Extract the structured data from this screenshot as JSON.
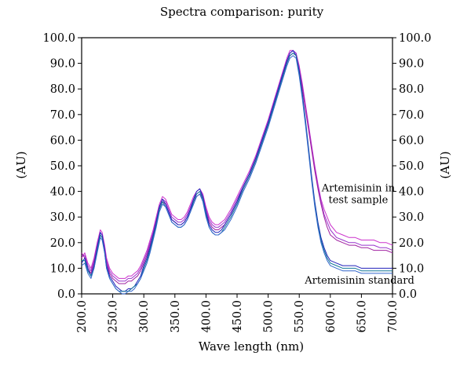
{
  "chart_data": {
    "type": "line",
    "title": "Spectra comparison: purity",
    "xlabel": "Wave length (nm)",
    "ylabel_left": "(AU)",
    "ylabel_right": "(AU)",
    "xlim": [
      200,
      700
    ],
    "ylim": [
      0,
      100
    ],
    "x_ticks": [
      "200.0",
      "250.0",
      "300.0",
      "350.0",
      "400.0",
      "450.0",
      "500.0",
      "550.0",
      "600.0",
      "650.0",
      "700.0"
    ],
    "y_ticks": [
      "0.0",
      "10.0",
      "20.0",
      "30.0",
      "40.0",
      "50.0",
      "60.0",
      "70.0",
      "80.0",
      "90.0",
      "100.0"
    ],
    "grid": false,
    "annotations": [
      {
        "lines": [
          "Artemisinin in",
          "test sample"
        ],
        "x": 645,
        "y": 40
      },
      {
        "lines": [
          "Artemisinin standard"
        ],
        "x": 647,
        "y": 4
      }
    ],
    "colors": {
      "test_sample": [
        "#cc33cc",
        "#9933cc",
        "#a020a0"
      ],
      "standard": [
        "#2222bb",
        "#117799",
        "#3366cc"
      ]
    },
    "series": [
      {
        "group": "test_sample",
        "x": [
          200,
          205,
          210,
          215,
          220,
          225,
          230,
          233,
          237,
          240,
          245,
          250,
          255,
          260,
          265,
          270,
          275,
          280,
          285,
          290,
          295,
          300,
          305,
          310,
          315,
          320,
          325,
          330,
          335,
          340,
          345,
          350,
          355,
          360,
          365,
          370,
          375,
          380,
          385,
          390,
          395,
          400,
          405,
          410,
          415,
          420,
          425,
          430,
          440,
          450,
          460,
          470,
          480,
          490,
          500,
          510,
          520,
          530,
          535,
          540,
          545,
          550,
          555,
          560,
          565,
          570,
          575,
          580,
          585,
          590,
          595,
          600,
          610,
          620,
          630,
          640,
          650,
          660,
          670,
          680,
          690,
          700
        ],
        "y": [
          14,
          16,
          12,
          10,
          14,
          20,
          25,
          24,
          19,
          14,
          10,
          8,
          7,
          6,
          6,
          6,
          7,
          7,
          8,
          9,
          11,
          14,
          17,
          21,
          25,
          30,
          35,
          38,
          37,
          34,
          31,
          30,
          29,
          29,
          30,
          32,
          35,
          38,
          40,
          41,
          39,
          34,
          30,
          28,
          27,
          27,
          28,
          29,
          33,
          38,
          43,
          48,
          54,
          61,
          68,
          76,
          84,
          92,
          95,
          95,
          94,
          89,
          82,
          74,
          66,
          58,
          50,
          43,
          37,
          33,
          30,
          27,
          24,
          23,
          22,
          22,
          21,
          21,
          21,
          20,
          20,
          19
        ]
      },
      {
        "group": "test_sample",
        "x": [
          200,
          205,
          210,
          215,
          220,
          225,
          230,
          233,
          237,
          240,
          245,
          250,
          255,
          260,
          265,
          270,
          275,
          280,
          285,
          290,
          295,
          300,
          305,
          310,
          315,
          320,
          325,
          330,
          335,
          340,
          345,
          350,
          355,
          360,
          365,
          370,
          375,
          380,
          385,
          390,
          395,
          400,
          405,
          410,
          415,
          420,
          425,
          430,
          440,
          450,
          460,
          470,
          480,
          490,
          500,
          510,
          520,
          530,
          535,
          540,
          545,
          550,
          555,
          560,
          565,
          570,
          575,
          580,
          585,
          590,
          595,
          600,
          610,
          620,
          630,
          640,
          650,
          660,
          670,
          680,
          690,
          700
        ],
        "y": [
          15,
          15,
          11,
          9,
          13,
          19,
          24,
          23,
          18,
          13,
          9,
          7,
          6,
          5,
          5,
          5,
          6,
          6,
          7,
          8,
          10,
          13,
          16,
          20,
          24,
          29,
          34,
          37,
          36,
          33,
          30,
          29,
          28,
          28,
          29,
          31,
          34,
          37,
          39,
          40,
          38,
          33,
          29,
          27,
          26,
          26,
          27,
          28,
          32,
          37,
          42,
          47,
          53,
          60,
          67,
          75,
          83,
          91,
          94,
          95,
          94,
          88,
          81,
          73,
          65,
          57,
          49,
          42,
          36,
          31,
          28,
          25,
          22,
          21,
          20,
          20,
          19,
          19,
          19,
          18,
          18,
          17
        ]
      },
      {
        "group": "test_sample",
        "x": [
          200,
          205,
          210,
          215,
          220,
          225,
          230,
          233,
          237,
          240,
          245,
          250,
          255,
          260,
          265,
          270,
          275,
          280,
          285,
          290,
          295,
          300,
          305,
          310,
          315,
          320,
          325,
          330,
          335,
          340,
          345,
          350,
          355,
          360,
          365,
          370,
          375,
          380,
          385,
          390,
          395,
          400,
          405,
          410,
          415,
          420,
          425,
          430,
          440,
          450,
          460,
          470,
          480,
          490,
          500,
          510,
          520,
          530,
          535,
          540,
          545,
          550,
          555,
          560,
          565,
          570,
          575,
          580,
          585,
          590,
          595,
          600,
          610,
          620,
          630,
          640,
          650,
          660,
          670,
          680,
          690,
          700
        ],
        "y": [
          16,
          14,
          10,
          8,
          12,
          18,
          23,
          22,
          17,
          12,
          8,
          6,
          5,
          4,
          4,
          4,
          5,
          5,
          6,
          7,
          9,
          12,
          15,
          19,
          23,
          28,
          33,
          36,
          35,
          32,
          29,
          28,
          27,
          27,
          28,
          30,
          33,
          36,
          38,
          39,
          37,
          32,
          28,
          26,
          25,
          25,
          26,
          27,
          31,
          36,
          41,
          46,
          52,
          59,
          66,
          74,
          82,
          90,
          93,
          94,
          93,
          87,
          80,
          72,
          64,
          56,
          48,
          41,
          35,
          30,
          26,
          23,
          21,
          20,
          19,
          19,
          18,
          18,
          17,
          17,
          17,
          16
        ]
      },
      {
        "group": "standard",
        "x": [
          200,
          205,
          210,
          215,
          220,
          225,
          230,
          233,
          237,
          240,
          245,
          250,
          255,
          260,
          265,
          270,
          275,
          280,
          285,
          290,
          295,
          300,
          305,
          310,
          315,
          320,
          325,
          330,
          335,
          340,
          345,
          350,
          355,
          360,
          365,
          370,
          375,
          380,
          385,
          390,
          395,
          400,
          405,
          410,
          415,
          420,
          425,
          430,
          440,
          450,
          460,
          470,
          480,
          490,
          500,
          510,
          520,
          530,
          535,
          540,
          545,
          550,
          555,
          560,
          565,
          570,
          575,
          580,
          585,
          590,
          595,
          600,
          610,
          620,
          630,
          640,
          650,
          660,
          670,
          680,
          690,
          700
        ],
        "y": [
          12,
          14,
          10,
          7,
          11,
          18,
          24,
          23,
          17,
          11,
          7,
          5,
          3,
          2,
          1,
          1,
          2,
          2,
          3,
          5,
          7,
          11,
          14,
          18,
          23,
          28,
          34,
          37,
          35,
          32,
          29,
          28,
          27,
          27,
          28,
          30,
          33,
          37,
          40,
          41,
          38,
          32,
          27,
          25,
          24,
          24,
          25,
          27,
          31,
          36,
          42,
          47,
          53,
          60,
          67,
          75,
          83,
          91,
          94,
          95,
          93,
          87,
          78,
          68,
          57,
          46,
          36,
          28,
          22,
          18,
          15,
          13,
          12,
          11,
          11,
          11,
          10,
          10,
          10,
          10,
          10,
          10
        ]
      },
      {
        "group": "standard",
        "x": [
          200,
          205,
          210,
          215,
          220,
          225,
          230,
          233,
          237,
          240,
          245,
          250,
          255,
          260,
          265,
          270,
          275,
          280,
          285,
          290,
          295,
          300,
          305,
          310,
          315,
          320,
          325,
          330,
          335,
          340,
          345,
          350,
          355,
          360,
          365,
          370,
          375,
          380,
          385,
          390,
          395,
          400,
          405,
          410,
          415,
          420,
          425,
          430,
          440,
          450,
          460,
          470,
          480,
          490,
          500,
          510,
          520,
          530,
          535,
          540,
          545,
          550,
          555,
          560,
          565,
          570,
          575,
          580,
          585,
          590,
          595,
          600,
          610,
          620,
          630,
          640,
          650,
          660,
          670,
          680,
          690,
          700
        ],
        "y": [
          13,
          13,
          9,
          7,
          10,
          17,
          23,
          22,
          16,
          10,
          6,
          4,
          2,
          1,
          1,
          1,
          1,
          2,
          3,
          4,
          6,
          10,
          13,
          17,
          22,
          27,
          33,
          36,
          34,
          31,
          28,
          27,
          26,
          26,
          27,
          29,
          32,
          36,
          39,
          40,
          37,
          31,
          26,
          24,
          23,
          23,
          24,
          26,
          30,
          35,
          41,
          46,
          52,
          59,
          66,
          74,
          82,
          90,
          93,
          94,
          93,
          86,
          77,
          67,
          56,
          45,
          35,
          27,
          21,
          17,
          14,
          12,
          11,
          10,
          10,
          10,
          9,
          9,
          9,
          9,
          9,
          9
        ]
      },
      {
        "group": "standard",
        "x": [
          200,
          205,
          210,
          215,
          220,
          225,
          230,
          233,
          237,
          240,
          245,
          250,
          255,
          260,
          265,
          270,
          275,
          280,
          285,
          290,
          295,
          300,
          305,
          310,
          315,
          320,
          325,
          330,
          335,
          340,
          345,
          350,
          355,
          360,
          365,
          370,
          375,
          380,
          385,
          390,
          395,
          400,
          405,
          410,
          415,
          420,
          425,
          430,
          440,
          450,
          460,
          470,
          480,
          490,
          500,
          510,
          520,
          530,
          535,
          540,
          545,
          550,
          555,
          560,
          565,
          570,
          575,
          580,
          585,
          590,
          595,
          600,
          610,
          620,
          630,
          640,
          650,
          660,
          670,
          680,
          690,
          700
        ],
        "y": [
          11,
          12,
          8,
          6,
          10,
          16,
          22,
          21,
          16,
          10,
          6,
          4,
          2,
          1,
          0,
          0,
          1,
          1,
          2,
          4,
          6,
          9,
          12,
          16,
          21,
          26,
          32,
          35,
          34,
          31,
          28,
          27,
          26,
          26,
          27,
          29,
          32,
          35,
          38,
          39,
          36,
          30,
          26,
          24,
          23,
          23,
          24,
          25,
          29,
          34,
          40,
          45,
          51,
          58,
          65,
          73,
          81,
          89,
          92,
          93,
          92,
          85,
          76,
          66,
          55,
          44,
          34,
          26,
          20,
          16,
          13,
          11,
          10,
          9,
          9,
          9,
          8,
          8,
          8,
          8,
          8,
          8
        ]
      }
    ]
  }
}
